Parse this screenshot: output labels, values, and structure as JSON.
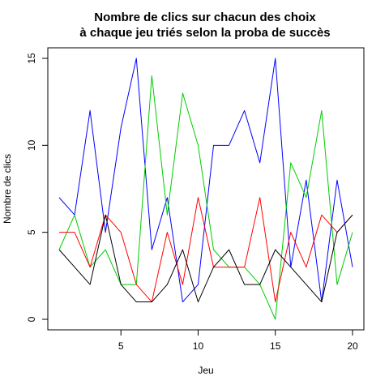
{
  "chart_data": {
    "type": "line",
    "title_line1": "Nombre de clics sur chacun des choix",
    "title_line2": "à chaque jeu triés selon la proba de succès",
    "xlabel": "Jeu",
    "ylabel": "Nombre de clics",
    "xlim": [
      1,
      20
    ],
    "ylim": [
      0,
      15
    ],
    "x_ticks": [
      5,
      10,
      15,
      20
    ],
    "y_ticks": [
      0,
      5,
      10,
      15
    ],
    "grid": false,
    "x": [
      1,
      2,
      3,
      4,
      5,
      6,
      7,
      8,
      9,
      10,
      11,
      12,
      13,
      14,
      15,
      16,
      17,
      18,
      19,
      20
    ],
    "series": [
      {
        "color": "#0000ff",
        "values": [
          7,
          6,
          12,
          5,
          11,
          15,
          4,
          7,
          1,
          2,
          10,
          10,
          12,
          9,
          15,
          3,
          8,
          1,
          8,
          3
        ]
      },
      {
        "color": "#00cd00",
        "values": [
          4,
          6,
          3,
          4,
          2,
          2,
          14,
          6,
          13,
          10,
          4,
          3,
          3,
          2,
          0,
          9,
          7,
          12,
          2,
          5
        ]
      },
      {
        "color": "#ff0000",
        "values": [
          5,
          5,
          3,
          6,
          5,
          2,
          1,
          5,
          2,
          7,
          3,
          3,
          3,
          7,
          1,
          5,
          3,
          6,
          5,
          6
        ]
      },
      {
        "color": "#000000",
        "values": [
          4,
          3,
          2,
          6,
          2,
          1,
          1,
          2,
          4,
          1,
          3,
          4,
          2,
          2,
          4,
          3,
          2,
          1,
          5,
          6
        ]
      }
    ]
  }
}
